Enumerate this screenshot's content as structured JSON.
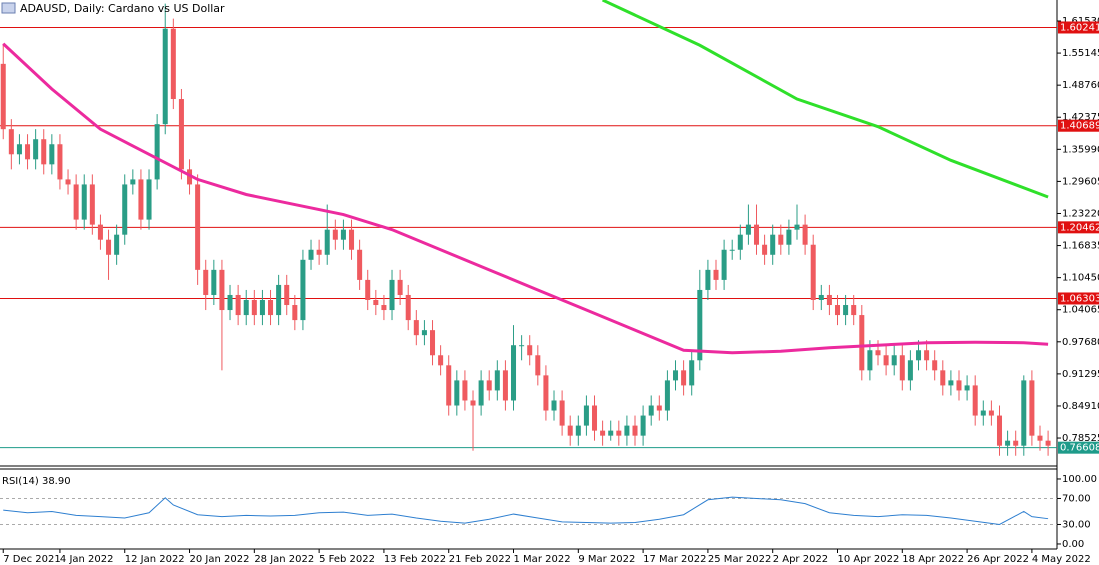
{
  "chart_data": [
    {
      "type": "candlestick",
      "title": "ADAUSD, Daily:  Cardano vs US Dollar",
      "open": [
        1.53,
        1.4,
        1.35,
        1.37,
        1.34,
        1.38,
        1.33,
        1.37,
        1.3,
        1.29,
        1.22,
        1.29,
        1.21,
        1.18,
        1.15,
        1.19,
        1.29,
        1.3,
        1.22,
        1.3,
        1.41,
        1.6,
        1.46,
        1.32,
        1.29,
        1.12,
        1.07,
        1.12,
        1.04,
        1.07,
        1.03,
        1.06,
        1.03,
        1.06,
        1.03,
        1.09,
        1.05,
        1.02,
        1.14,
        1.16,
        1.15,
        1.2,
        1.18,
        1.2,
        1.16,
        1.1,
        1.06,
        1.05,
        1.04,
        1.1,
        1.07,
        1.02,
        0.99,
        1.0,
        0.95,
        0.93,
        0.85,
        0.9,
        0.86,
        0.85,
        0.9,
        0.88,
        0.92,
        0.86,
        0.97,
        0.97,
        0.95,
        0.91,
        0.84,
        0.86,
        0.81,
        0.79,
        0.81,
        0.85,
        0.8,
        0.79,
        0.8,
        0.79,
        0.81,
        0.79,
        0.83,
        0.85,
        0.84,
        0.9,
        0.92,
        0.89,
        0.94,
        1.08,
        1.12,
        1.1,
        1.16,
        1.16,
        1.19,
        1.21,
        1.17,
        1.15,
        1.19,
        1.17,
        1.2,
        1.21,
        1.17,
        1.06,
        1.07,
        1.05,
        1.03,
        1.05,
        1.03,
        0.92,
        0.96,
        0.95,
        0.93,
        0.95,
        0.9,
        0.94,
        0.96,
        0.94,
        0.92,
        0.89,
        0.9,
        0.88,
        0.89,
        0.83,
        0.84,
        0.83,
        0.77,
        0.78,
        0.77,
        0.9,
        0.79,
        0.78
      ],
      "high": [
        1.57,
        1.42,
        1.39,
        1.39,
        1.4,
        1.4,
        1.39,
        1.39,
        1.32,
        1.31,
        1.31,
        1.31,
        1.23,
        1.2,
        1.21,
        1.31,
        1.32,
        1.32,
        1.32,
        1.43,
        1.65,
        1.62,
        1.48,
        1.34,
        1.31,
        1.14,
        1.14,
        1.14,
        1.09,
        1.09,
        1.08,
        1.08,
        1.08,
        1.08,
        1.11,
        1.11,
        1.07,
        1.16,
        1.18,
        1.18,
        1.25,
        1.22,
        1.22,
        1.22,
        1.18,
        1.12,
        1.08,
        1.07,
        1.12,
        1.12,
        1.09,
        1.04,
        1.02,
        1.02,
        0.97,
        0.95,
        0.92,
        0.92,
        0.88,
        0.92,
        0.92,
        0.94,
        0.94,
        1.01,
        0.99,
        0.99,
        0.97,
        0.93,
        0.88,
        0.88,
        0.83,
        0.83,
        0.87,
        0.87,
        0.82,
        0.82,
        0.82,
        0.83,
        0.83,
        0.85,
        0.87,
        0.87,
        0.92,
        0.94,
        0.94,
        0.96,
        1.12,
        1.14,
        1.14,
        1.18,
        1.18,
        1.21,
        1.25,
        1.25,
        1.19,
        1.21,
        1.21,
        1.22,
        1.25,
        1.23,
        1.19,
        1.09,
        1.09,
        1.07,
        1.07,
        1.07,
        1.05,
        0.98,
        0.98,
        0.97,
        0.97,
        0.97,
        0.96,
        0.98,
        0.98,
        0.96,
        0.94,
        0.92,
        0.92,
        0.91,
        0.91,
        0.86,
        0.86,
        0.85,
        0.8,
        0.8,
        0.91,
        0.92,
        0.81,
        0.8
      ],
      "low": [
        1.38,
        1.32,
        1.33,
        1.32,
        1.32,
        1.31,
        1.31,
        1.28,
        1.27,
        1.2,
        1.2,
        1.19,
        1.16,
        1.1,
        1.13,
        1.17,
        1.27,
        1.2,
        1.2,
        1.28,
        1.39,
        1.44,
        1.3,
        1.27,
        1.09,
        1.04,
        1.05,
        0.92,
        1.02,
        1.01,
        1.01,
        1.01,
        1.01,
        1.01,
        1.01,
        1.03,
        1.0,
        1.0,
        1.12,
        1.13,
        1.13,
        1.16,
        1.16,
        1.14,
        1.08,
        1.04,
        1.03,
        1.02,
        1.02,
        1.05,
        1.0,
        0.97,
        0.97,
        0.93,
        0.91,
        0.83,
        0.83,
        0.84,
        0.76,
        0.83,
        0.86,
        0.86,
        0.84,
        0.84,
        0.94,
        0.93,
        0.89,
        0.82,
        0.82,
        0.79,
        0.77,
        0.77,
        0.79,
        0.78,
        0.77,
        0.78,
        0.77,
        0.77,
        0.77,
        0.77,
        0.81,
        0.82,
        0.82,
        0.88,
        0.87,
        0.87,
        0.92,
        1.06,
        1.08,
        1.08,
        1.14,
        1.14,
        1.17,
        1.15,
        1.13,
        1.13,
        1.15,
        1.15,
        1.18,
        1.15,
        1.04,
        1.04,
        1.03,
        1.01,
        1.01,
        1.01,
        0.9,
        0.9,
        0.93,
        0.91,
        0.91,
        0.88,
        0.88,
        0.92,
        0.92,
        0.9,
        0.87,
        0.87,
        0.86,
        0.86,
        0.81,
        0.81,
        0.81,
        0.75,
        0.75,
        0.75,
        0.75,
        0.77,
        0.76,
        0.75
      ],
      "close": [
        1.4,
        1.35,
        1.37,
        1.34,
        1.38,
        1.33,
        1.37,
        1.3,
        1.29,
        1.22,
        1.29,
        1.21,
        1.18,
        1.15,
        1.19,
        1.29,
        1.3,
        1.22,
        1.3,
        1.41,
        1.6,
        1.46,
        1.32,
        1.29,
        1.12,
        1.07,
        1.12,
        1.04,
        1.07,
        1.03,
        1.06,
        1.03,
        1.06,
        1.03,
        1.09,
        1.05,
        1.02,
        1.14,
        1.16,
        1.15,
        1.2,
        1.18,
        1.2,
        1.16,
        1.1,
        1.06,
        1.05,
        1.04,
        1.1,
        1.07,
        1.02,
        0.99,
        1.0,
        0.95,
        0.93,
        0.85,
        0.9,
        0.86,
        0.85,
        0.9,
        0.88,
        0.92,
        0.86,
        0.97,
        0.97,
        0.95,
        0.91,
        0.84,
        0.86,
        0.81,
        0.79,
        0.81,
        0.85,
        0.8,
        0.79,
        0.8,
        0.79,
        0.81,
        0.79,
        0.83,
        0.85,
        0.84,
        0.9,
        0.92,
        0.89,
        0.94,
        1.08,
        1.12,
        1.1,
        1.16,
        1.16,
        1.19,
        1.21,
        1.17,
        1.15,
        1.19,
        1.17,
        1.2,
        1.21,
        1.17,
        1.06,
        1.07,
        1.05,
        1.03,
        1.05,
        1.03,
        0.92,
        0.96,
        0.95,
        0.93,
        0.95,
        0.9,
        0.94,
        0.96,
        0.94,
        0.92,
        0.89,
        0.9,
        0.88,
        0.89,
        0.83,
        0.84,
        0.83,
        0.77,
        0.78,
        0.77,
        0.9,
        0.79,
        0.78,
        0.77
      ],
      "up_color": "#2a9d86",
      "down_color": "#ef5a5f",
      "series": [
        {
          "color": "#ec2a9e",
          "x": [
            0,
            6,
            12,
            18,
            24,
            30,
            36,
            42,
            48,
            54,
            60,
            66,
            72,
            78,
            84,
            90,
            96,
            102,
            108,
            114,
            120,
            126,
            129
          ],
          "values": [
            1.57,
            1.48,
            1.4,
            1.35,
            1.3,
            1.27,
            1.25,
            1.23,
            1.2,
            1.16,
            1.12,
            1.08,
            1.04,
            1.0,
            0.96,
            0.955,
            0.958,
            0.965,
            0.97,
            0.975,
            0.976,
            0.975,
            0.972
          ]
        },
        {
          "color": "#2fe02a",
          "x": [
            74,
            86,
            98,
            108,
            117,
            129
          ],
          "values": [
            1.657,
            1.567,
            1.46,
            1.405,
            1.338,
            1.265
          ]
        }
      ],
      "levels": [
        {
          "value": 1.60241,
          "color": "#e01010"
        },
        {
          "value": 1.40689,
          "color": "#e01010"
        },
        {
          "value": 1.20462,
          "color": "#e01010"
        },
        {
          "value": 1.06303,
          "color": "#e01010"
        },
        {
          "value": 0.76608,
          "color": "#1e9b8a"
        }
      ],
      "xlim": [
        -0.4,
        130.1
      ],
      "xticks": [
        {
          "value": 0,
          "label": "7 Dec 2021"
        },
        {
          "value": 7,
          "label": "4 Jan 2022"
        },
        {
          "value": 15,
          "label": "12 Jan 2022"
        },
        {
          "value": 23,
          "label": "20 Jan 2022"
        },
        {
          "value": 31,
          "label": "28 Jan 2022"
        },
        {
          "value": 39,
          "label": "5 Feb 2022"
        },
        {
          "value": 47,
          "label": "13 Feb 2022"
        },
        {
          "value": 55,
          "label": "21 Feb 2022"
        },
        {
          "value": 63,
          "label": "1 Mar 2022"
        },
        {
          "value": 71,
          "label": "9 Mar 2022"
        },
        {
          "value": 79,
          "label": "17 Mar 2022"
        },
        {
          "value": 87,
          "label": "25 Mar 2022"
        },
        {
          "value": 95,
          "label": "2 Apr 2022"
        },
        {
          "value": 103,
          "label": "10 Apr 2022"
        },
        {
          "value": 111,
          "label": "18 Apr 2022"
        },
        {
          "value": 119,
          "label": "26 Apr 2022"
        },
        {
          "value": 127,
          "label": "4 May 2022"
        }
      ],
      "ylim": [
        0.7296,
        1.6571
      ],
      "yticks": [
        {
          "value": 1.6153,
          "label": "1.61530"
        },
        1.55145,
        {
          "value": 1.4876,
          "label": "1.48760"
        },
        1.42375,
        {
          "value": 1.3599,
          "label": "1.35990"
        },
        1.29605,
        {
          "value": 1.2322,
          "label": "1.23220"
        },
        1.16835,
        {
          "value": 1.1045,
          "label": "1.10450"
        },
        1.04065,
        {
          "value": 0.9768,
          "label": "0.97680"
        },
        0.91295,
        {
          "value": 0.8491,
          "label": "0.84910"
        },
        0.78525
      ]
    },
    {
      "type": "line",
      "title": "RSI(14) 38.90",
      "color": "#2e7fd0",
      "x": [
        0,
        3,
        6,
        9,
        12,
        15,
        18,
        20,
        21,
        24,
        27,
        30,
        33,
        36,
        39,
        42,
        45,
        48,
        51,
        54,
        57,
        60,
        63,
        66,
        69,
        72,
        75,
        78,
        81,
        84,
        87,
        90,
        93,
        96,
        99,
        102,
        105,
        108,
        111,
        114,
        117,
        120,
        123,
        126,
        127,
        129
      ],
      "values": [
        52,
        48,
        50,
        44,
        42,
        40,
        48,
        71,
        60,
        45,
        42,
        44,
        43,
        44,
        48,
        49,
        44,
        46,
        40,
        35,
        32,
        38,
        46,
        40,
        34,
        33,
        32,
        33,
        38,
        45,
        68,
        72,
        70,
        68,
        62,
        48,
        44,
        42,
        45,
        44,
        40,
        35,
        30,
        50,
        42,
        38.9
      ],
      "levels": [
        70,
        30
      ],
      "xlim": [
        -0.4,
        130.1
      ],
      "ylim": [
        -6.2,
        113.8
      ],
      "yticks": [
        {
          "value": 100,
          "label": "100.00"
        },
        {
          "value": 70,
          "label": "70.00"
        },
        {
          "value": 30,
          "label": "30.00"
        },
        {
          "value": 0,
          "label": "0.00"
        }
      ]
    }
  ]
}
